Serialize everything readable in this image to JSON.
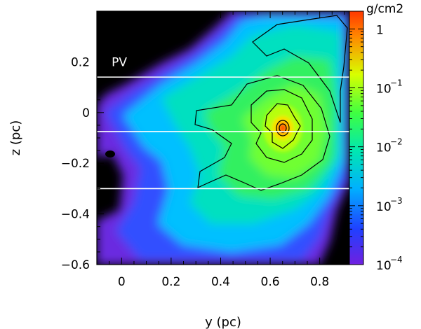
{
  "chart_data": {
    "type": "heatmap",
    "title": "",
    "xlabel": "y (pc)",
    "ylabel": "z (pc)",
    "xlim": [
      -0.1,
      0.92
    ],
    "ylim": [
      -0.6,
      0.4
    ],
    "x_ticks": [
      0,
      0.2,
      0.4,
      0.6,
      0.8
    ],
    "x_tick_labels": [
      "0",
      "0.2",
      "0.4",
      "0.6",
      "0.8"
    ],
    "y_ticks": [
      0.2,
      0,
      -0.2,
      -0.4,
      -0.6
    ],
    "y_tick_labels": [
      "0.2",
      "0",
      "−0.2",
      "−0.4",
      "−0.6"
    ],
    "colorbar": {
      "unit": "g/cm2",
      "scale": "log",
      "range": [
        0.0001,
        2
      ],
      "tick_values": [
        1,
        0.1,
        0.01,
        0.001,
        0.0001
      ],
      "tick_labels": [
        {
          "base": "1",
          "exp": ""
        },
        {
          "base": "10",
          "exp": "−1"
        },
        {
          "base": "10",
          "exp": "−2"
        },
        {
          "base": "10",
          "exp": "−3"
        },
        {
          "base": "10",
          "exp": "−4"
        }
      ],
      "colors": [
        "#7020e0",
        "#2040ff",
        "#00b0ff",
        "#00e8b0",
        "#40ff40",
        "#d8ff00",
        "#ff8800",
        "#ff3800"
      ]
    },
    "annotations": [
      {
        "text": "PV",
        "x": -0.04,
        "y": 0.2
      }
    ],
    "cut_lines_z": [
      0.14,
      -0.075,
      -0.3
    ],
    "peak": {
      "y": 0.64,
      "z": -0.07,
      "value": 2
    },
    "grid": false,
    "legend": "none"
  }
}
